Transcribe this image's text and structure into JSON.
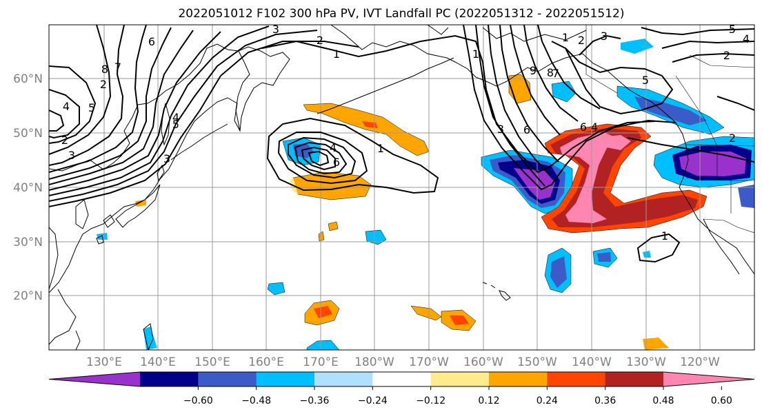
{
  "title": "2022051012 F102 300 hPa PV, IVT Landfall PC (2022051312 - 2022051512)",
  "lat_labels": [
    "60°N",
    "50°N",
    "40°N",
    "30°N",
    "20°N"
  ],
  "lon_labels": [
    "130°E",
    "140°E",
    "150°E",
    "160°E",
    "170°E",
    "180°W",
    "170°W",
    "160°W",
    "150°W",
    "140°W",
    "130°W",
    "120°W"
  ],
  "colorbar": {
    "colors": [
      "#9932CC",
      "#00008B",
      "#3B5CC8",
      "#00BFFF",
      "#B0E0FF",
      "#FFFFFF",
      "#FFEB8C",
      "#FFA500",
      "#FF4500",
      "#B22222",
      "#FF86B0"
    ],
    "ticks": [
      "−0.60",
      "−0.48",
      "−0.36",
      "−0.24",
      "−0.12",
      "0.12",
      "0.24",
      "0.36",
      "0.48",
      "0.60"
    ]
  },
  "contour_labels": [
    "6",
    "8",
    "7",
    "4",
    "5",
    "3",
    "2",
    "1",
    "3",
    "2",
    "1",
    "4",
    "6",
    "1",
    "9",
    "6",
    "8",
    "7",
    "3",
    "5",
    "4",
    "6",
    "1",
    "2",
    "3",
    "5",
    "4",
    "2",
    "5",
    "2",
    "1",
    "4",
    "3",
    "2"
  ],
  "chart_data": {
    "type": "map",
    "title": "2022051012 F102 300 hPa PV, IVT Landfall PC (2022051312 - 2022051512)",
    "lat_ticks": [
      "60°N",
      "50°N",
      "40°N",
      "30°N",
      "20°N"
    ],
    "lon_ticks": [
      "130°E",
      "140°E",
      "150°E",
      "160°E",
      "170°E",
      "180°W",
      "170°W",
      "160°W",
      "150°W",
      "140°W",
      "130°W",
      "120°W"
    ],
    "colorbar_levels": [
      -0.6,
      -0.48,
      -0.36,
      -0.24,
      -0.12,
      0.12,
      0.24,
      0.36,
      0.48,
      0.6
    ],
    "colorbar_extend": "both",
    "grid": true
  }
}
